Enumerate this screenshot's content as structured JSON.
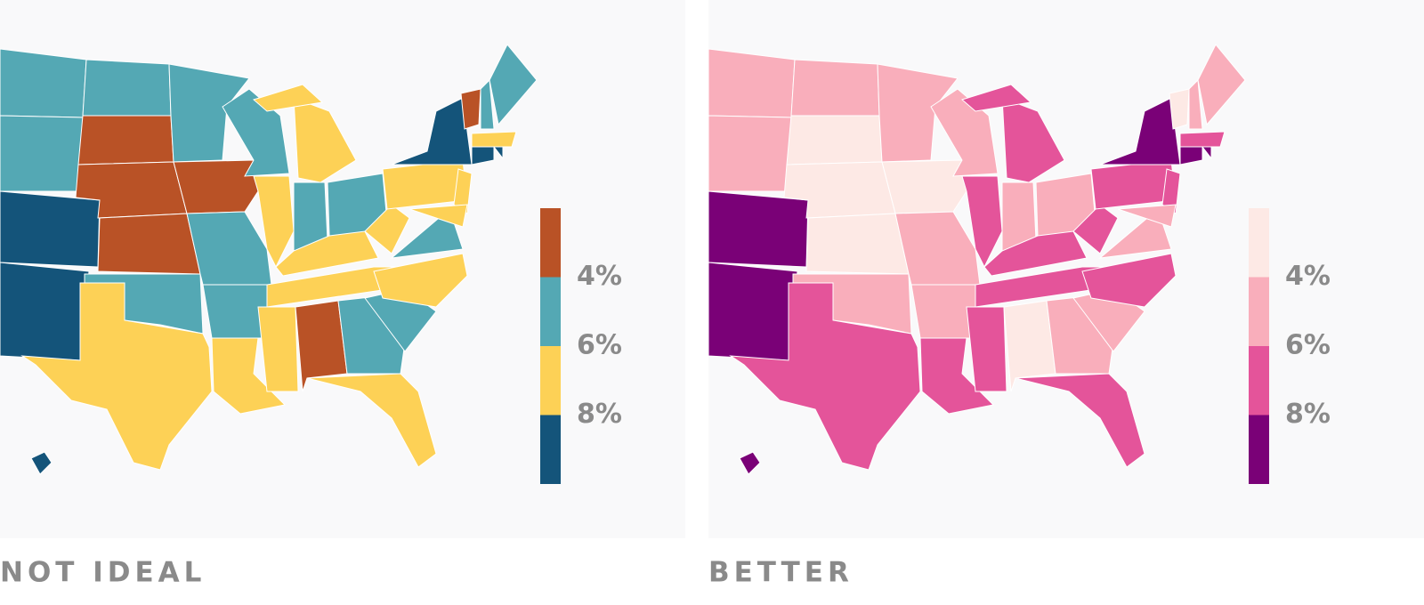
{
  "panels": [
    {
      "caption": "NOT IDEAL",
      "legend": {
        "colors": [
          "#b95226",
          "#54a8b4",
          "#fdd156",
          "#14547a"
        ],
        "ticks": [
          {
            "value": 4,
            "label": "4%"
          },
          {
            "value": 6,
            "label": "6%"
          },
          {
            "value": 8,
            "label": "8%"
          }
        ]
      }
    },
    {
      "caption": "BETTER",
      "legend": {
        "colors": [
          "#fde9e5",
          "#f9aebb",
          "#e4549a",
          "#7a0177"
        ],
        "ticks": [
          {
            "value": 4,
            "label": "4%"
          },
          {
            "value": 6,
            "label": "6%"
          },
          {
            "value": 8,
            "label": "8%"
          }
        ]
      }
    }
  ]
}
